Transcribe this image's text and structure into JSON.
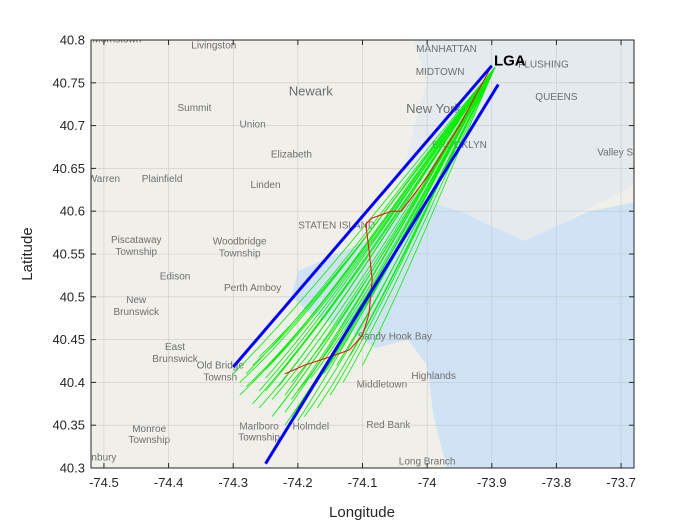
{
  "chart_data": {
    "type": "line",
    "title": "",
    "xlabel": "Longitude",
    "ylabel": "Latitude",
    "xlim": [
      -74.52,
      -73.68
    ],
    "ylim": [
      40.3,
      40.8
    ],
    "x_ticks": [
      -74.5,
      -74.4,
      -74.3,
      -74.2,
      -74.1,
      -74.0,
      -73.9,
      -73.8,
      -73.7
    ],
    "x_tick_labels": [
      "-74.5",
      "-74.4",
      "-74.3",
      "-74.2",
      "-74.1",
      "-74",
      "-73.9",
      "-73.8",
      "-73.7"
    ],
    "y_ticks": [
      40.3,
      40.35,
      40.4,
      40.45,
      40.5,
      40.55,
      40.6,
      40.65,
      40.7,
      40.75,
      40.8
    ],
    "y_tick_labels": [
      "40.3",
      "40.35",
      "40.4",
      "40.45",
      "40.5",
      "40.55",
      "40.6",
      "40.65",
      "40.7",
      "40.75",
      "40.8"
    ],
    "grid": true,
    "annotation": {
      "text": "LGA",
      "x": -73.875,
      "y": 40.776
    },
    "corridor_boundaries": [
      {
        "color": "#0000ff",
        "points": [
          [
            -74.3,
            40.418
          ],
          [
            -73.9,
            40.77
          ]
        ]
      },
      {
        "color": "#0000ff",
        "points": [
          [
            -74.25,
            40.305
          ],
          [
            -73.89,
            40.748
          ]
        ]
      }
    ],
    "outlier_track": {
      "color": "#ff0000",
      "points": [
        [
          -74.22,
          40.41
        ],
        [
          -74.19,
          40.42
        ],
        [
          -74.15,
          40.43
        ],
        [
          -74.12,
          40.438
        ],
        [
          -74.1,
          40.455
        ],
        [
          -74.09,
          40.48
        ],
        [
          -74.085,
          40.52
        ],
        [
          -74.09,
          40.555
        ],
        [
          -74.095,
          40.585
        ],
        [
          -74.085,
          40.592
        ],
        [
          -74.055,
          40.6
        ],
        [
          -74.04,
          40.6
        ],
        [
          -74.0,
          40.64
        ],
        [
          -73.95,
          40.7
        ],
        [
          -73.9,
          40.77
        ]
      ]
    },
    "arrival_tracks": {
      "color": "#00ee00",
      "endpoint": [
        -73.895,
        40.768
      ],
      "starts": [
        [
          -74.28,
          40.395
        ],
        [
          -74.27,
          40.4
        ],
        [
          -74.26,
          40.39
        ],
        [
          -74.25,
          40.405
        ],
        [
          -74.3,
          40.41
        ],
        [
          -74.29,
          40.385
        ],
        [
          -74.24,
          40.38
        ],
        [
          -74.23,
          40.37
        ],
        [
          -74.22,
          40.365
        ],
        [
          -74.21,
          40.36
        ],
        [
          -74.2,
          40.37
        ],
        [
          -74.19,
          40.38
        ],
        [
          -74.27,
          40.375
        ],
        [
          -74.25,
          40.39
        ],
        [
          -74.23,
          40.395
        ],
        [
          -74.21,
          40.4
        ],
        [
          -74.18,
          40.405
        ],
        [
          -74.16,
          40.41
        ],
        [
          -74.14,
          40.42
        ],
        [
          -74.12,
          40.43
        ],
        [
          -74.27,
          40.42
        ],
        [
          -74.26,
          40.43
        ],
        [
          -74.24,
          40.425
        ],
        [
          -74.28,
          40.41
        ],
        [
          -74.22,
          40.385
        ],
        [
          -74.2,
          40.39
        ],
        [
          -74.26,
          40.37
        ],
        [
          -74.24,
          40.36
        ],
        [
          -74.22,
          40.35
        ],
        [
          -74.2,
          40.355
        ],
        [
          -74.19,
          40.36
        ],
        [
          -74.17,
          40.37
        ],
        [
          -74.15,
          40.385
        ],
        [
          -74.13,
          40.4
        ],
        [
          -74.1,
          40.42
        ],
        [
          -74.29,
          40.4
        ],
        [
          -74.25,
          40.415
        ],
        [
          -74.23,
          40.41
        ],
        [
          -74.21,
          40.38
        ],
        [
          -74.18,
          40.39
        ]
      ]
    }
  },
  "map": {
    "water_color": "#cfe3f5",
    "land_color": "#f0efe9",
    "labels": [
      {
        "text": "Livingston",
        "x": -74.33,
        "y": 40.79
      },
      {
        "text": "Newark",
        "x": -74.18,
        "y": 40.735
      },
      {
        "text": "New York",
        "x": -73.99,
        "y": 40.715
      },
      {
        "text": "MANHATTAN",
        "x": -73.97,
        "y": 40.786
      },
      {
        "text": "MIDTOWN",
        "x": -73.98,
        "y": 40.759
      },
      {
        "text": "FLUSHING",
        "x": -73.82,
        "y": 40.768
      },
      {
        "text": "QUEENS",
        "x": -73.8,
        "y": 40.73
      },
      {
        "text": "Summit",
        "x": -74.36,
        "y": 40.717
      },
      {
        "text": "Union",
        "x": -74.27,
        "y": 40.698
      },
      {
        "text": "Elizabeth",
        "x": -74.21,
        "y": 40.663
      },
      {
        "text": "Warren",
        "x": -74.5,
        "y": 40.634
      },
      {
        "text": "Plainfield",
        "x": -74.41,
        "y": 40.634
      },
      {
        "text": "Linden",
        "x": -74.25,
        "y": 40.627
      },
      {
        "text": "STATEN ISLAND",
        "x": -74.14,
        "y": 40.58
      },
      {
        "text": "BROOKLYN",
        "x": -73.95,
        "y": 40.674
      },
      {
        "text": "Valley Stre",
        "x": -73.7,
        "y": 40.665
      },
      {
        "text": "Piscataway",
        "x": -74.45,
        "y": 40.563
      },
      {
        "text": "Township",
        "x": -74.45,
        "y": 40.549
      },
      {
        "text": "Woodbridge",
        "x": -74.29,
        "y": 40.561
      },
      {
        "text": "Township",
        "x": -74.29,
        "y": 40.547
      },
      {
        "text": "Edison",
        "x": -74.39,
        "y": 40.52
      },
      {
        "text": "Perth Amboy",
        "x": -74.27,
        "y": 40.507
      },
      {
        "text": "New",
        "x": -74.45,
        "y": 40.493
      },
      {
        "text": "Brunswick",
        "x": -74.45,
        "y": 40.479
      },
      {
        "text": "East",
        "x": -74.39,
        "y": 40.438
      },
      {
        "text": "Brunswick",
        "x": -74.39,
        "y": 40.424
      },
      {
        "text": "Old Bridge",
        "x": -74.32,
        "y": 40.416
      },
      {
        "text": "Townsh",
        "x": -74.32,
        "y": 40.402
      },
      {
        "text": "Middletown",
        "x": -74.07,
        "y": 40.394
      },
      {
        "text": "Highlands",
        "x": -73.99,
        "y": 40.404
      },
      {
        "text": "Red Bank",
        "x": -74.06,
        "y": 40.347
      },
      {
        "text": "Marlboro",
        "x": -74.26,
        "y": 40.345
      },
      {
        "text": "Township",
        "x": -74.26,
        "y": 40.332
      },
      {
        "text": "Holmdel",
        "x": -74.18,
        "y": 40.345
      },
      {
        "text": "Monroe",
        "x": -74.43,
        "y": 40.342
      },
      {
        "text": "Township",
        "x": -74.43,
        "y": 40.329
      },
      {
        "text": "Long Branch",
        "x": -74.0,
        "y": 40.304
      },
      {
        "text": "Sandy Hook Bay",
        "x": -74.05,
        "y": 40.45
      },
      {
        "text": "Morristown",
        "x": -74.48,
        "y": 40.797
      },
      {
        "text": "nbury",
        "x": -74.5,
        "y": 40.309
      }
    ]
  }
}
